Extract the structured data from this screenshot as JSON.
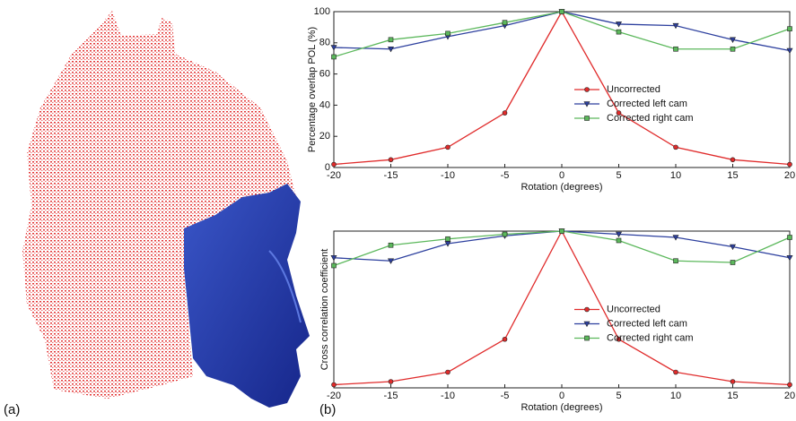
{
  "panel_labels": [
    "(a)",
    "(b)"
  ],
  "chart_data": [
    {
      "type": "line",
      "xlabel": "Rotation (degrees)",
      "ylabel": "Percentage overlap POL (%)",
      "x": [
        -20,
        -15,
        -10,
        -5,
        0,
        5,
        10,
        15,
        20
      ],
      "xlim": [
        -20,
        20
      ],
      "xticks": [
        -20,
        -15,
        -10,
        -5,
        0,
        5,
        10,
        15,
        20
      ],
      "ylim": [
        0,
        100
      ],
      "yticks": [
        0,
        20,
        40,
        60,
        80,
        100
      ],
      "legend": "center right",
      "series": [
        {
          "name": "Uncorrected",
          "color": "#e02b2b",
          "marker": "circle",
          "values": [
            2,
            5,
            13,
            35,
            100,
            35,
            13,
            5,
            2
          ]
        },
        {
          "name": "Corrected left cam",
          "color": "#2c3f9e",
          "marker": "triangle",
          "values": [
            77,
            76,
            84,
            91,
            100,
            92,
            91,
            82,
            75
          ]
        },
        {
          "name": "Corrected right cam",
          "color": "#5cb85c",
          "marker": "square",
          "values": [
            71,
            82,
            86,
            93,
            100,
            87,
            76,
            76,
            89
          ]
        }
      ]
    },
    {
      "type": "line",
      "xlabel": "Rotation (degrees)",
      "ylabel": "Cross correlation coefficient",
      "x": [
        -20,
        -15,
        -10,
        -5,
        0,
        5,
        10,
        15,
        20
      ],
      "xlim": [
        -20,
        20
      ],
      "xticks": [
        -20,
        -15,
        -10,
        -5,
        0,
        5,
        10,
        15,
        20
      ],
      "ylim": [
        0,
        1
      ],
      "legend": "center right",
      "series": [
        {
          "name": "Uncorrected",
          "color": "#e02b2b",
          "marker": "circle",
          "values": [
            0.02,
            0.04,
            0.1,
            0.31,
            1,
            0.31,
            0.1,
            0.04,
            0.02
          ]
        },
        {
          "name": "Corrected left cam",
          "color": "#2c3f9e",
          "marker": "triangle",
          "values": [
            0.83,
            0.81,
            0.92,
            0.97,
            1,
            0.98,
            0.96,
            0.9,
            0.83
          ]
        },
        {
          "name": "Corrected right cam",
          "color": "#5cb85c",
          "marker": "square",
          "values": [
            0.78,
            0.91,
            0.95,
            0.98,
            1,
            0.94,
            0.81,
            0.8,
            0.96
          ]
        }
      ]
    }
  ]
}
